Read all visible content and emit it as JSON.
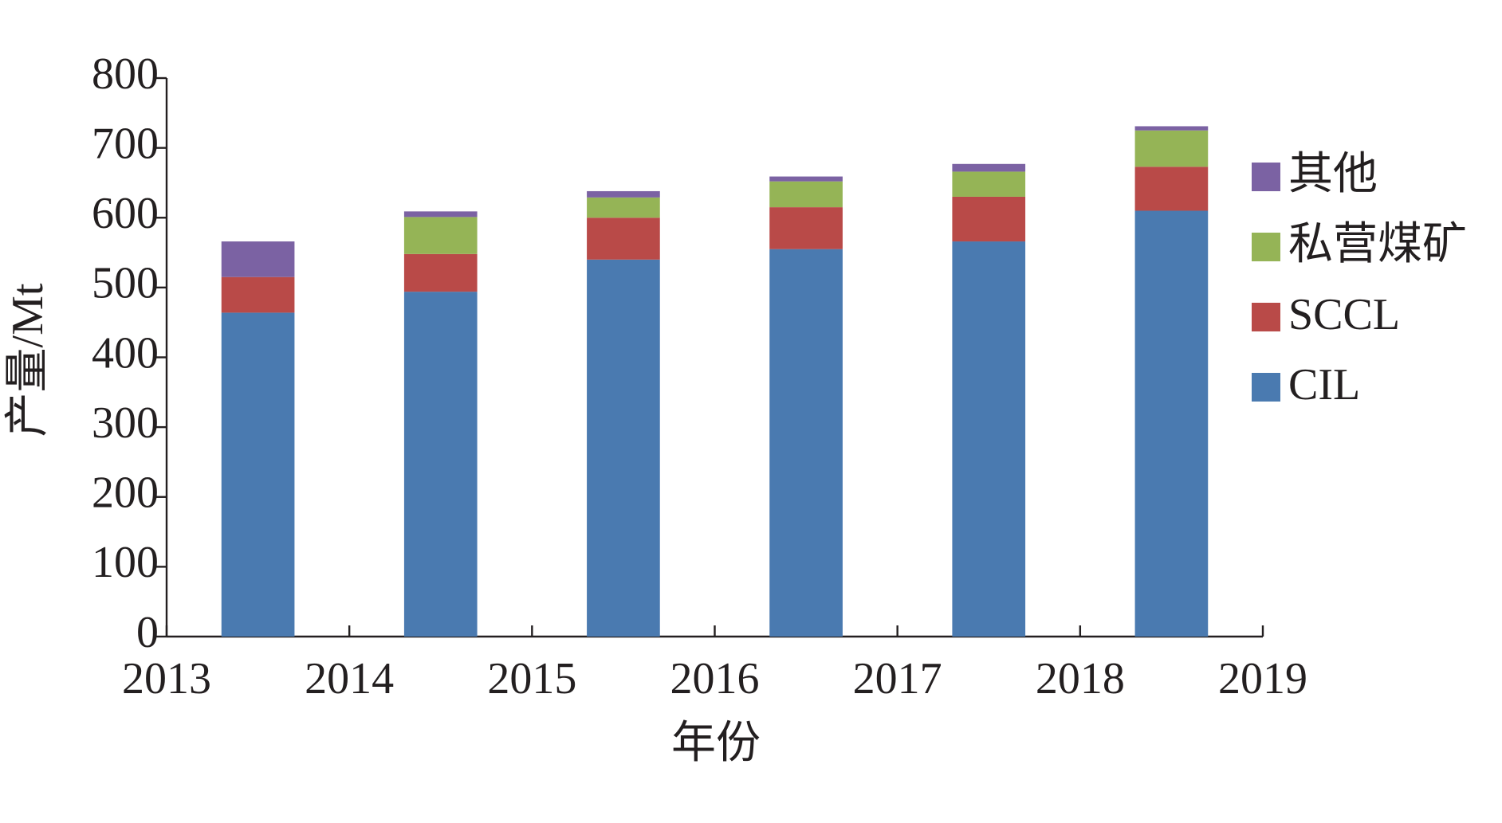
{
  "chart_data": {
    "type": "bar",
    "stacked": true,
    "x_label": "年份",
    "y_label": "产量/Mt",
    "x": [
      2013,
      2014,
      2015,
      2016,
      2017,
      2018
    ],
    "xlim": [
      2013,
      2019
    ],
    "xticks": [
      2013,
      2014,
      2015,
      2016,
      2017,
      2018,
      2019
    ],
    "ylim": [
      0,
      800
    ],
    "yticks": [
      0,
      100,
      200,
      300,
      400,
      500,
      600,
      700,
      800
    ],
    "grid": false,
    "legend": "right",
    "series": [
      {
        "name": "CIL",
        "color": "#4a7ab0",
        "values": [
          464,
          494,
          540,
          555,
          566,
          610
        ]
      },
      {
        "name": "SCCL",
        "color": "#b94a48",
        "values": [
          51,
          54,
          60,
          60,
          64,
          63
        ]
      },
      {
        "name": "私营煤矿",
        "color": "#95b456",
        "values": [
          0,
          53,
          29,
          37,
          36,
          52
        ]
      },
      {
        "name": "其他",
        "color": "#7b62a3",
        "values": [
          51,
          8,
          9,
          7,
          11,
          6
        ]
      }
    ]
  }
}
